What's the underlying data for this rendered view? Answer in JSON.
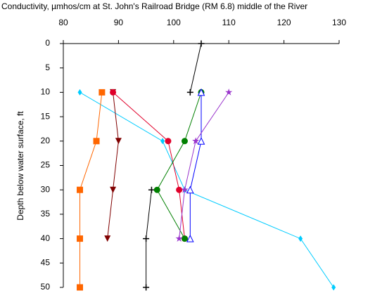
{
  "chart_data": {
    "type": "line",
    "title": "Conductivity, µmhos/cm at St. John's Railroad Bridge (RM 6.8) middle of the River",
    "y_label": "Depth below water surface, ft",
    "xlim": [
      80,
      130
    ],
    "xticks": [
      80,
      90,
      100,
      110,
      120,
      130
    ],
    "ylim": [
      0,
      50
    ],
    "yticks": [
      0,
      5,
      10,
      15,
      20,
      25,
      30,
      35,
      40,
      45,
      50
    ],
    "y_inverted": true,
    "x_axis_position": "top",
    "depths": [
      0,
      10,
      20,
      30,
      40,
      50
    ],
    "series": [
      {
        "color": "#000000",
        "marker": "plus",
        "values": [
          105,
          103,
          null,
          96,
          95,
          95
        ]
      },
      {
        "color": "#00ccff",
        "marker": "diamond",
        "values": [
          null,
          83,
          98,
          102,
          123,
          129
        ]
      },
      {
        "color": "#ff6600",
        "marker": "square",
        "values": [
          null,
          87,
          86,
          83,
          83,
          83
        ]
      },
      {
        "color": "#800000",
        "marker": "triangle-down",
        "values": [
          null,
          89,
          90,
          89,
          88,
          null
        ]
      },
      {
        "color": "#e0002a",
        "marker": "circle",
        "values": [
          null,
          89,
          99,
          101,
          102,
          null
        ]
      },
      {
        "color": "#008000",
        "marker": "cross-circle",
        "values": [
          null,
          105,
          102,
          97,
          102,
          null
        ]
      },
      {
        "color": "#0000ff",
        "marker": "triangle-up",
        "values": [
          null,
          105,
          105,
          103,
          103,
          null
        ]
      },
      {
        "color": "#9933cc",
        "marker": "star",
        "values": [
          null,
          110,
          104,
          102,
          101,
          null
        ]
      }
    ]
  }
}
